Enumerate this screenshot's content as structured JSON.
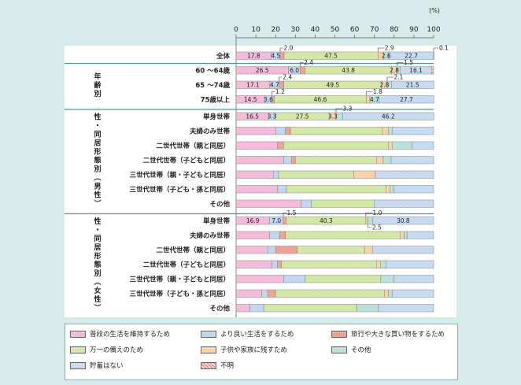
{
  "chart_data": {
    "type": "bar",
    "stacked": true,
    "orientation": "horizontal",
    "unit": "(%)",
    "xlim": [
      0,
      100
    ],
    "ticks": [
      0,
      10,
      20,
      30,
      40,
      50,
      60,
      70,
      80,
      90,
      100
    ],
    "grid": false,
    "legend_position": "bottom",
    "series": [
      {
        "name": "普段の生活を維持するため",
        "color": "#f4b6d6",
        "pattern": "dots"
      },
      {
        "name": "より良い生活をするため",
        "color": "#bcd3ef",
        "pattern": "dots"
      },
      {
        "name": "旅行や大きな買い物をするため",
        "color": "#f09a8c",
        "pattern": "dots"
      },
      {
        "name": "万一の備えのため",
        "color": "#cfe6a0",
        "pattern": "dots"
      },
      {
        "name": "子供や家族に残すため",
        "color": "#f9cfa2",
        "pattern": "dots"
      },
      {
        "name": "その他",
        "color": "#b5ded4",
        "pattern": "dots"
      },
      {
        "name": "貯蓄はない",
        "color": "#c3d8f0",
        "pattern": "dots"
      },
      {
        "name": "不明",
        "color": "#f49a8a",
        "pattern": "hatch"
      }
    ],
    "groups": [
      {
        "label": "",
        "start": 0,
        "end": 0
      },
      {
        "label": "年齢別",
        "start": 1,
        "end": 3
      },
      {
        "label": "性・同居形態別（男性）",
        "start": 4,
        "end": 10
      },
      {
        "label": "性・同居形態別（女性）",
        "start": 11,
        "end": 17
      }
    ],
    "rows": [
      {
        "label": "全体",
        "values": [
          17.8,
          4.5,
          2.0,
          47.5,
          2.9,
          2.6,
          22.7,
          0.1
        ]
      },
      {
        "label": "60 ～64歳",
        "values": [
          26.5,
          6.0,
          2.4,
          43.8,
          2.8,
          1.5,
          16.1,
          0.9
        ]
      },
      {
        "label": "65 ～74歳",
        "values": [
          17.1,
          4.7,
          2.4,
          49.5,
          2.8,
          2.1,
          21.5,
          0.0
        ]
      },
      {
        "label": "75歳以上",
        "values": [
          14.5,
          3.6,
          1.2,
          46.6,
          1.8,
          4.7,
          27.7,
          0.0
        ]
      },
      {
        "label": "単身世帯",
        "values": [
          16.5,
          3.3,
          0.0,
          27.5,
          3.3,
          3.3,
          46.2,
          0.0
        ]
      },
      {
        "label": "夫婦のみ世帯",
        "values": [
          20.0,
          5.0,
          2.5,
          46.5,
          3.0,
          2.0,
          21.0,
          0.0
        ]
      },
      {
        "label": "二世代世帯（親と同居）",
        "values": [
          21.0,
          0.0,
          3.0,
          53.0,
          2.0,
          10.0,
          11.0,
          0.0
        ]
      },
      {
        "label": "二世代世帯（子どもと同居）",
        "values": [
          24.0,
          4.0,
          2.0,
          41.0,
          3.5,
          4.0,
          21.5,
          0.0
        ]
      },
      {
        "label": "三世代世帯（親・子どもと同居）",
        "values": [
          19.0,
          2.5,
          0.0,
          38.0,
          11.0,
          0.0,
          29.5,
          0.0
        ]
      },
      {
        "label": "三世代世帯（子ども・孫と同居）",
        "values": [
          21.0,
          4.5,
          0.0,
          50.5,
          2.0,
          2.0,
          20.0,
          0.0
        ]
      },
      {
        "label": "その他",
        "values": [
          33.0,
          5.0,
          0.0,
          32.0,
          0.0,
          0.0,
          30.0,
          0.0
        ]
      },
      {
        "label": "単身世帯",
        "values": [
          16.9,
          7.0,
          1.5,
          40.3,
          1.0,
          2.5,
          30.8,
          0.0
        ]
      },
      {
        "label": "夫婦のみ世帯",
        "values": [
          17.0,
          5.0,
          3.0,
          58.0,
          2.0,
          1.5,
          13.5,
          0.0
        ]
      },
      {
        "label": "二世代世帯（親と同居）",
        "values": [
          16.0,
          4.0,
          11.0,
          34.0,
          4.0,
          0.0,
          31.0,
          0.0
        ]
      },
      {
        "label": "二世代世帯（子どもと同居）",
        "values": [
          18.0,
          3.0,
          2.0,
          48.0,
          2.0,
          3.0,
          24.0,
          0.0
        ]
      },
      {
        "label": "三世代世帯（親・子どもと同居）",
        "values": [
          24.0,
          11.0,
          0.0,
          38.0,
          0.0,
          7.0,
          20.0,
          0.0
        ]
      },
      {
        "label": "三世代世帯（子ども・孫と同居）",
        "values": [
          13.0,
          3.0,
          4.0,
          55.0,
          2.0,
          2.0,
          21.0,
          0.0
        ]
      },
      {
        "label": "その他",
        "values": [
          7.0,
          7.0,
          0.0,
          47.0,
          0.0,
          11.0,
          28.0,
          0.0
        ]
      }
    ],
    "data_labels": [
      {
        "row": 0,
        "series": 0,
        "text": "17.8",
        "place": "in"
      },
      {
        "row": 0,
        "series": 1,
        "text": "4.5",
        "place": "in"
      },
      {
        "row": 0,
        "series": 2,
        "text": "2.0",
        "place": "above"
      },
      {
        "row": 0,
        "series": 3,
        "text": "47.5",
        "place": "in"
      },
      {
        "row": 0,
        "series": 4,
        "text": "2.9",
        "place": "above"
      },
      {
        "row": 0,
        "series": 5,
        "text": "2.6",
        "place": "in"
      },
      {
        "row": 0,
        "series": 6,
        "text": "22.7",
        "place": "in"
      },
      {
        "row": 0,
        "series": 7,
        "text": "0.1",
        "place": "right"
      },
      {
        "row": 1,
        "series": 0,
        "text": "26.5",
        "place": "in"
      },
      {
        "row": 1,
        "series": 1,
        "text": "6.0",
        "place": "in"
      },
      {
        "row": 1,
        "series": 2,
        "text": "2.4",
        "place": "above"
      },
      {
        "row": 1,
        "series": 3,
        "text": "43.8",
        "place": "in"
      },
      {
        "row": 1,
        "series": 4,
        "text": "2.8",
        "place": "in"
      },
      {
        "row": 1,
        "series": 5,
        "text": "1.5",
        "place": "above"
      },
      {
        "row": 1,
        "series": 6,
        "text": "16.1",
        "place": "in"
      },
      {
        "row": 2,
        "series": 0,
        "text": "17.1",
        "place": "in"
      },
      {
        "row": 2,
        "series": 1,
        "text": "4.7",
        "place": "in"
      },
      {
        "row": 2,
        "series": 2,
        "text": "2.4",
        "place": "above"
      },
      {
        "row": 2,
        "series": 3,
        "text": "49.5",
        "place": "in"
      },
      {
        "row": 2,
        "series": 4,
        "text": "2.8",
        "place": "in"
      },
      {
        "row": 2,
        "series": 5,
        "text": "2.1",
        "place": "above"
      },
      {
        "row": 2,
        "series": 6,
        "text": "21.5",
        "place": "in"
      },
      {
        "row": 3,
        "series": 0,
        "text": "14.5",
        "place": "in"
      },
      {
        "row": 3,
        "series": 1,
        "text": "3.6",
        "place": "in"
      },
      {
        "row": 3,
        "series": 2,
        "text": "1.2",
        "place": "above"
      },
      {
        "row": 3,
        "series": 3,
        "text": "46.6",
        "place": "in"
      },
      {
        "row": 3,
        "series": 4,
        "text": "1.8",
        "place": "above"
      },
      {
        "row": 3,
        "series": 5,
        "text": "4.7",
        "place": "in"
      },
      {
        "row": 3,
        "series": 6,
        "text": "27.7",
        "place": "in"
      },
      {
        "row": 4,
        "series": 0,
        "text": "16.5",
        "place": "in"
      },
      {
        "row": 4,
        "series": 1,
        "text": "3.3",
        "place": "in"
      },
      {
        "row": 4,
        "series": 3,
        "text": "27.5",
        "place": "in"
      },
      {
        "row": 4,
        "series": 4,
        "text": "3.3",
        "place": "in"
      },
      {
        "row": 4,
        "series": 5,
        "text": "3.3",
        "place": "above"
      },
      {
        "row": 4,
        "series": 6,
        "text": "46.2",
        "place": "in"
      },
      {
        "row": 11,
        "series": 0,
        "text": "16.9",
        "place": "in"
      },
      {
        "row": 11,
        "series": 1,
        "text": "7.0",
        "place": "in"
      },
      {
        "row": 11,
        "series": 2,
        "text": "1.5",
        "place": "above"
      },
      {
        "row": 11,
        "series": 3,
        "text": "40.3",
        "place": "in"
      },
      {
        "row": 11,
        "series": 4,
        "text": "1.0",
        "place": "above"
      },
      {
        "row": 11,
        "series": 5,
        "text": "2.5",
        "place": "below"
      },
      {
        "row": 11,
        "series": 6,
        "text": "30.8",
        "place": "in"
      }
    ]
  }
}
